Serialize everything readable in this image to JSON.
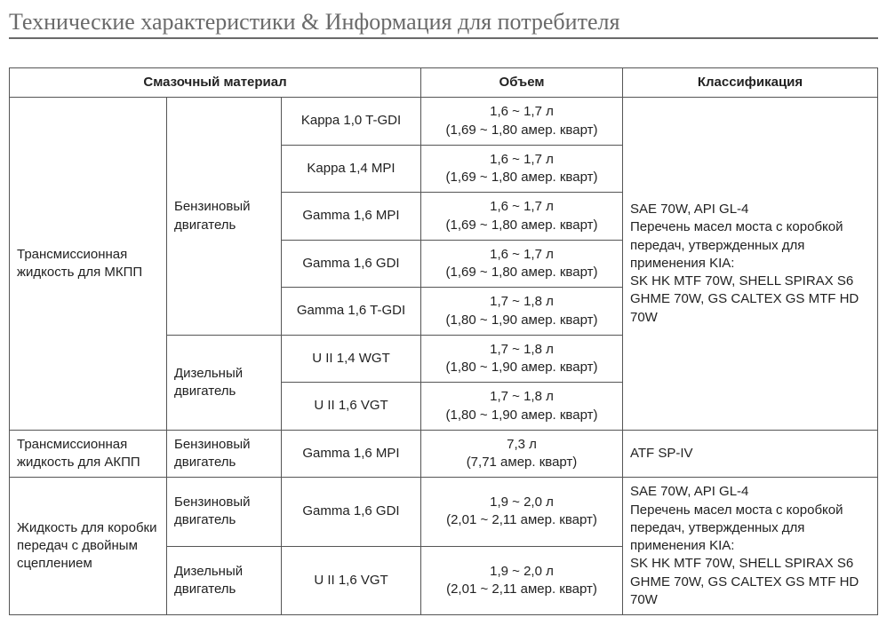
{
  "title": "Технические характеристики & Информация для потребителя",
  "headers": {
    "material": "Смазочный материал",
    "volume": "Объем",
    "classification": "Классификация"
  },
  "groups": {
    "mkpp": {
      "label": "Трансмиссионная жидкость для МКПП",
      "engine_types": {
        "petrol": "Бензиновый двигатель",
        "diesel": "Дизельный двигатель"
      },
      "rows": [
        {
          "engine": "Kappa 1,0 T-GDI",
          "vol1": "1,6 ~ 1,7 л",
          "vol2": "(1,69 ~ 1,80 амер. кварт)"
        },
        {
          "engine": "Kappa 1,4 MPI",
          "vol1": "1,6 ~ 1,7 л",
          "vol2": "(1,69 ~ 1,80 амер. кварт)"
        },
        {
          "engine": "Gamma 1,6 MPI",
          "vol1": "1,6 ~ 1,7 л",
          "vol2": "(1,69 ~ 1,80 амер. кварт)"
        },
        {
          "engine": "Gamma 1,6 GDI",
          "vol1": "1,6 ~ 1,7 л",
          "vol2": "(1,69 ~ 1,80 амер. кварт)"
        },
        {
          "engine": "Gamma 1,6 T-GDI",
          "vol1": "1,7 ~ 1,8 л",
          "vol2": "(1,80 ~ 1,90 амер. кварт)"
        },
        {
          "engine": "U II 1,4 WGT",
          "vol1": "1,7 ~ 1,8 л",
          "vol2": "(1,80 ~ 1,90 амер. кварт)"
        },
        {
          "engine": "U II 1,6 VGT",
          "vol1": "1,7 ~ 1,8 л",
          "vol2": "(1,80 ~ 1,90 амер. кварт)"
        }
      ],
      "classification": {
        "l1": "SAE 70W, API GL-4",
        "l2": "Перечень масел моста с коробкой передач, утвержденных для применения KIA:",
        "l3": "SK HK MTF 70W, SHELL SPIRAX S6 GHME 70W, GS CALTEX GS MTF HD 70W"
      }
    },
    "akpp": {
      "label": "Трансмиссионная жидкость для АКПП",
      "engine_type": "Бензиновый двигатель",
      "engine": "Gamma 1,6 MPI",
      "vol1": "7,3 л",
      "vol2": "(7,71 амер. кварт)",
      "classification": "ATF SP-IV"
    },
    "dct": {
      "label": "Жидкость для коробки передач с двойным сцеплением",
      "engine_types": {
        "petrol": "Бензиновый двигатель",
        "diesel": "Дизельный двигатель"
      },
      "rows": [
        {
          "engine": "Gamma 1,6 GDI",
          "vol1": "1,9 ~ 2,0 л",
          "vol2": "(2,01 ~ 2,11 амер. кварт)"
        },
        {
          "engine": "U II 1,6 VGT",
          "vol1": "1,9 ~ 2,0 л",
          "vol2": "(2,01 ~ 2,11 амер. кварт)"
        }
      ],
      "classification": {
        "l1": "SAE 70W, API GL-4",
        "l2": "Перечень масел моста с коробкой передач, утвержденных для применения KIA:",
        "l3": "SK HK MTF 70W, SHELL SPIRAX S6 GHME 70W, GS CALTEX GS MTF HD 70W"
      }
    }
  }
}
